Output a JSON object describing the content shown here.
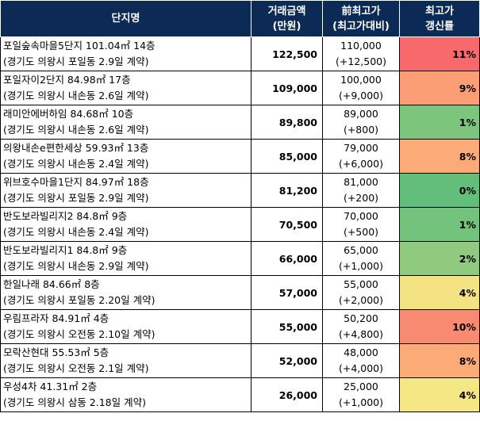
{
  "header": {
    "col1": "단지명",
    "col2_line1": "거래금액",
    "col2_line2": "(만원)",
    "col3_line1": "前최고가",
    "col3_line2": "(최고가대비)",
    "col4_line1": "최고가",
    "col4_line2": "갱신률"
  },
  "rows": [
    {
      "name": "포일숲속마을5단지 101.04㎡ 14층",
      "location": "(경기도 의왕시 포일동 2.9일 계약)",
      "price": "122,500",
      "prev_high": "110,000",
      "diff": "(+12,500)",
      "rate": "11%",
      "color": "#f8696b"
    },
    {
      "name": "포일자이2단지 84.98㎡ 17층",
      "location": "(경기도 의왕시 내손동 2.6일 계약)",
      "price": "109,000",
      "prev_high": "100,000",
      "diff": "(+9,000)",
      "rate": "9%",
      "color": "#fb9d75"
    },
    {
      "name": "래미안에버하임 84.68㎡ 10층",
      "location": "(경기도 의왕시 내손동 2.6일 계약)",
      "price": "89,800",
      "prev_high": "89,000",
      "diff": "(+800)",
      "rate": "1%",
      "color": "#7cc57d"
    },
    {
      "name": "의왕내손e편한세상 59.93㎡ 13층",
      "location": "(경기도 의왕시 내손동 2.4일 계약)",
      "price": "85,000",
      "prev_high": "79,000",
      "diff": "(+6,000)",
      "rate": "8%",
      "color": "#fcaa77"
    },
    {
      "name": "위브호수마을1단지 84.97㎡ 18층",
      "location": "(경기도 의왕시 포일동 2.9일 계약)",
      "price": "81,200",
      "prev_high": "81,000",
      "diff": "(+200)",
      "rate": "0%",
      "color": "#63be7b"
    },
    {
      "name": "반도보라빌리지2 84.8㎡ 9층",
      "location": "(경기도 의왕시 내손동 2.4일 계약)",
      "price": "70,500",
      "prev_high": "70,000",
      "diff": "(+500)",
      "rate": "1%",
      "color": "#74c37c"
    },
    {
      "name": "반도보라빌리지1 84.8㎡ 9층",
      "location": "(경기도 의왕시 내손동 2.9일 계약)",
      "price": "66,000",
      "prev_high": "65,000",
      "diff": "(+1,000)",
      "rate": "2%",
      "color": "#8fca7e"
    },
    {
      "name": "한일나래 84.66㎡ 8층",
      "location": "(경기도 의왕시 포일동 2.20일 계약)",
      "price": "57,000",
      "prev_high": "55,000",
      "diff": "(+2,000)",
      "rate": "4%",
      "color": "#f3e383"
    },
    {
      "name": "우림프라자 84.91㎡ 4층",
      "location": "(경기도 의왕시 오전동 2.10일 계약)",
      "price": "55,000",
      "prev_high": "50,200",
      "diff": "(+4,800)",
      "rate": "10%",
      "color": "#f98a72"
    },
    {
      "name": "모락산현대 55.53㎡ 5층",
      "location": "(경기도 의왕시 오전동 2.1일 계약)",
      "price": "52,000",
      "prev_high": "48,000",
      "diff": "(+4,000)",
      "rate": "8%",
      "color": "#fcaa77"
    },
    {
      "name": "우성4차 41.31㎡ 2층",
      "location": "(경기도 의왕시 삼동 2.18일 계약)",
      "price": "26,000",
      "prev_high": "25,000",
      "diff": "(+1,000)",
      "rate": "4%",
      "color": "#f5e784"
    }
  ]
}
